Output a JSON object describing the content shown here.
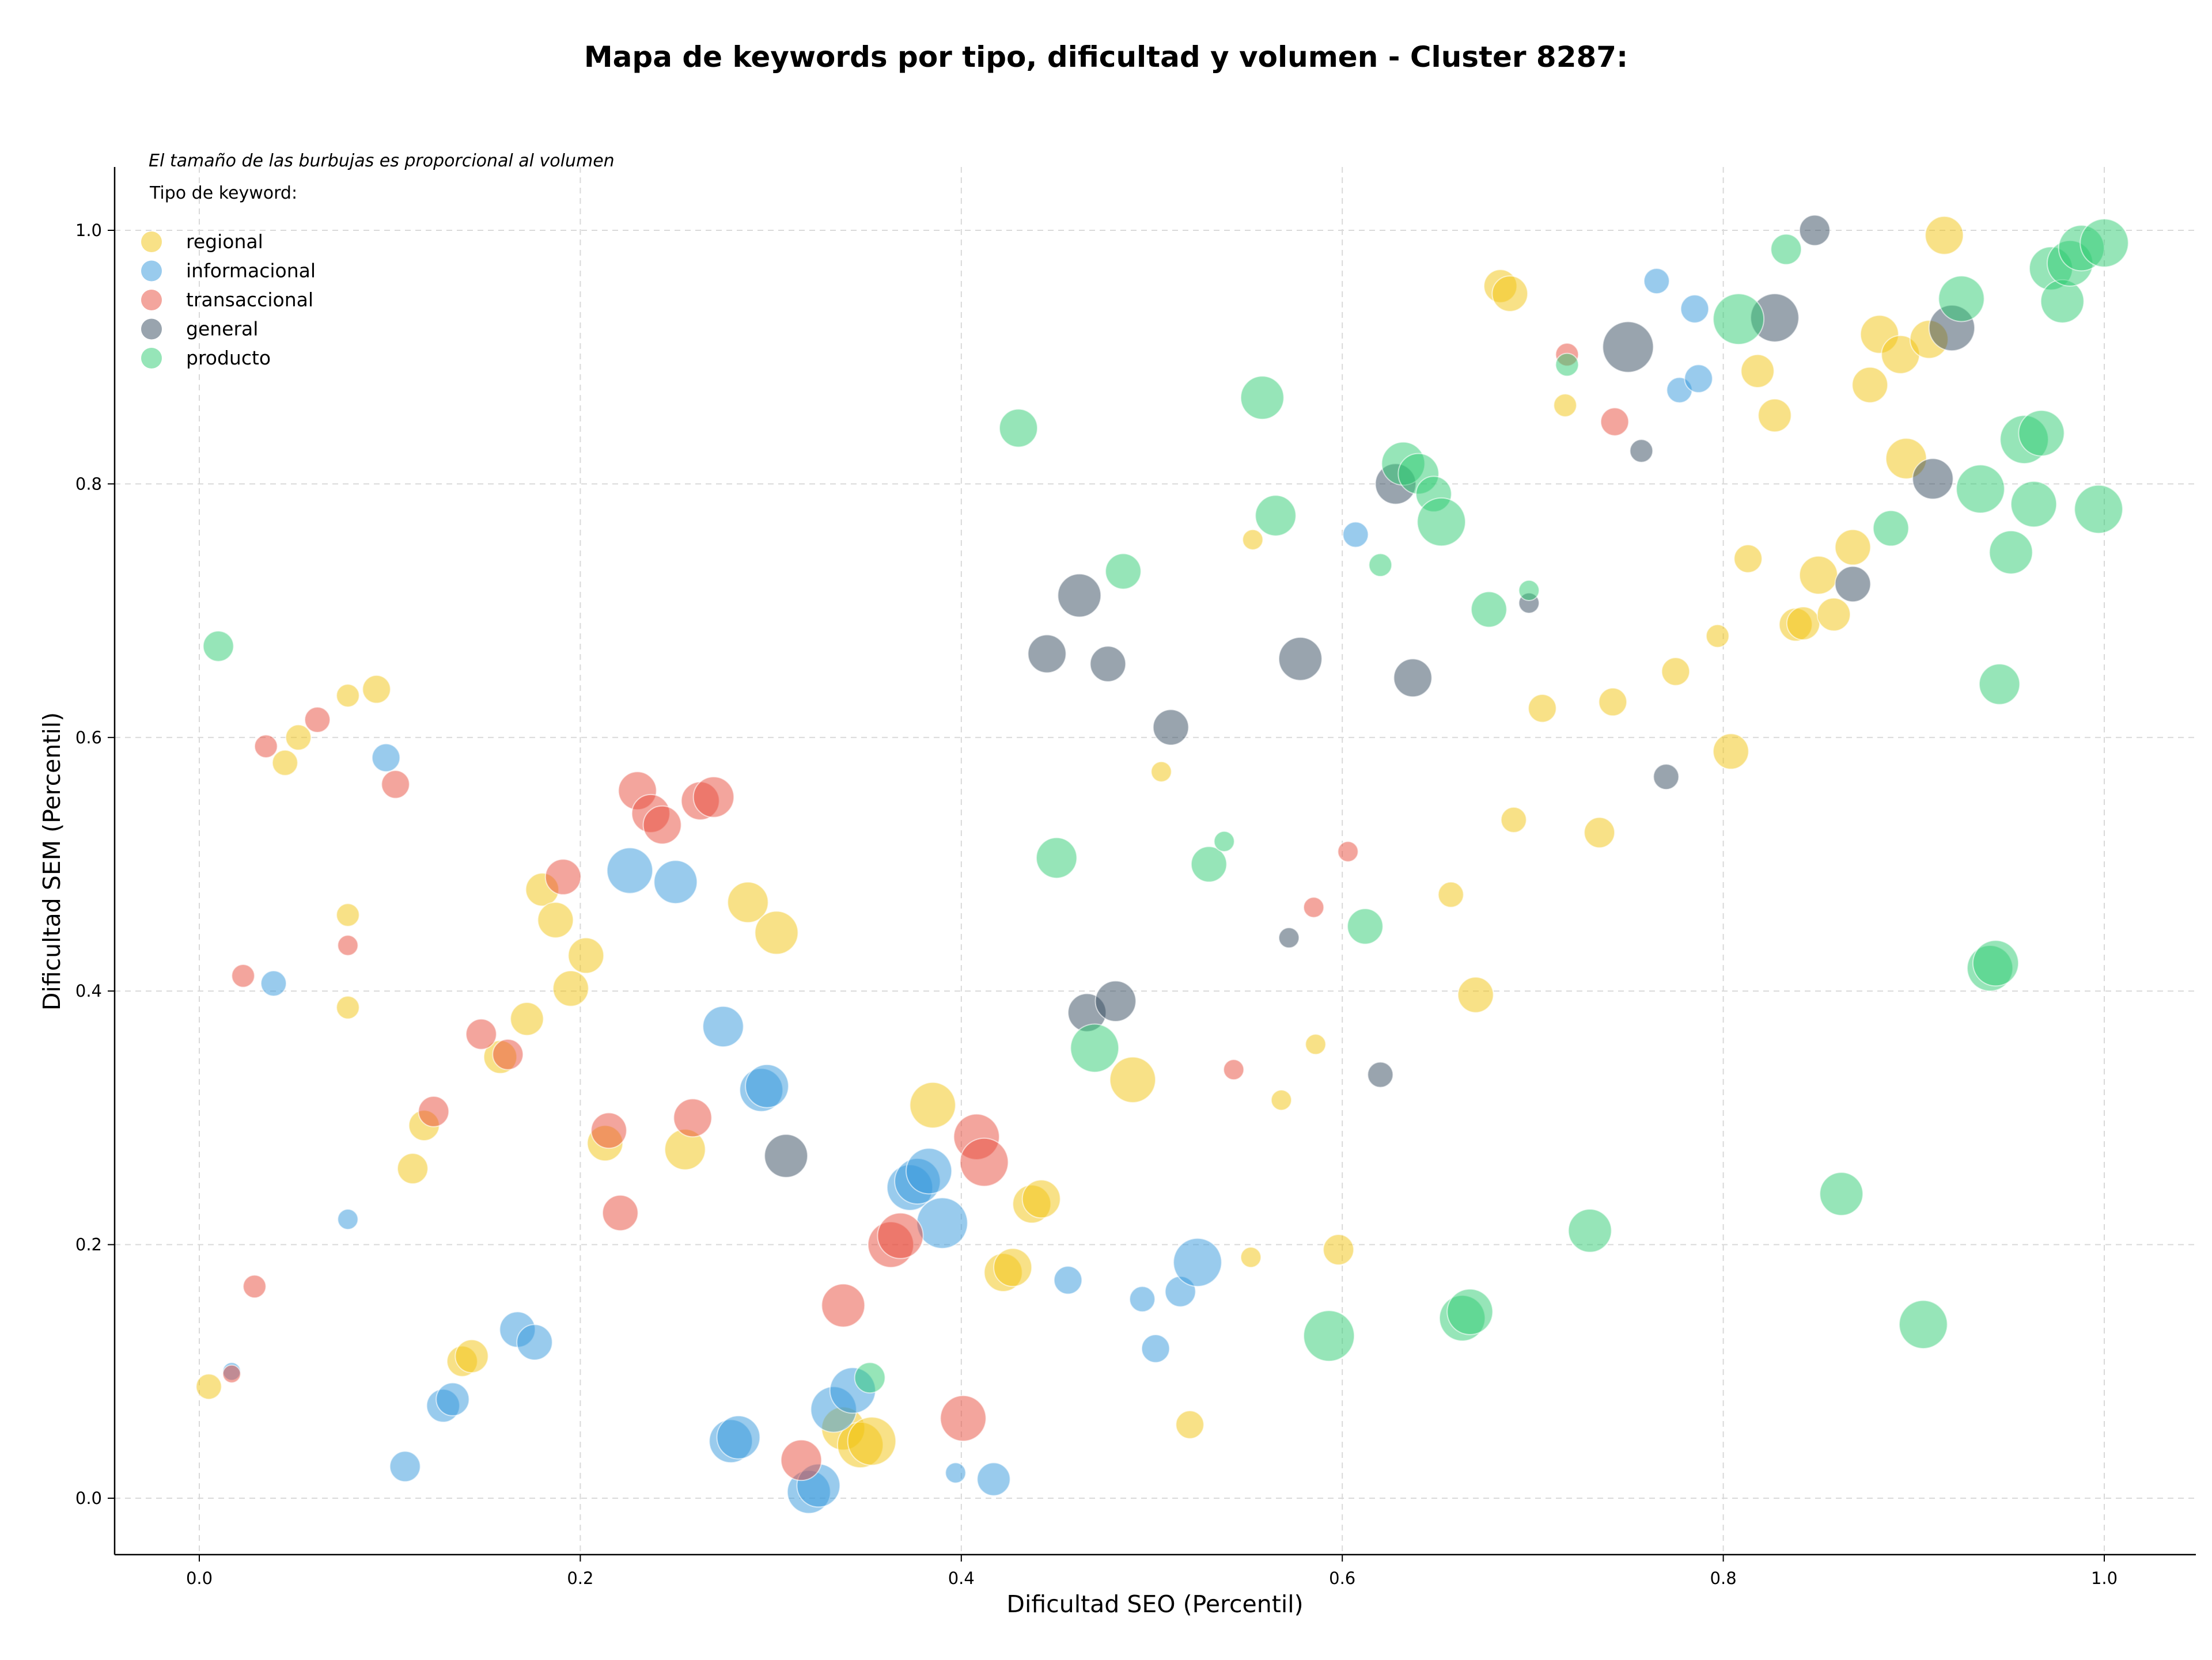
{
  "colors": {
    "regional": "#f1c40f",
    "informacional": "#3498db",
    "transaccional": "#e74c3c",
    "general": "#34495e",
    "producto": "#2ecc71"
  },
  "chart_data": {
    "type": "scatter",
    "title": "Mapa de keywords por tipo, dificultad y volumen - Cluster 8287:",
    "xlabel": "Dificultad SEO (Percentil)",
    "ylabel": "Dificultad SEM (Percentil)",
    "xlim": [
      -0.045,
      1.05
    ],
    "ylim": [
      -0.045,
      1.05
    ],
    "xticks": [
      "0.0",
      "0.2",
      "0.4",
      "0.6",
      "0.8",
      "1.0"
    ],
    "yticks": [
      "0.0",
      "0.2",
      "0.4",
      "0.6",
      "0.8",
      "1.0"
    ],
    "grid": true,
    "note": "El tamaño de las burbujas es proporcional al volumen",
    "legend_title": "Tipo de keyword:",
    "legend_placement": "top-left",
    "legend": [
      "regional",
      "informacional",
      "transaccional",
      "general",
      "producto"
    ],
    "series": [
      {
        "name": "regional",
        "points": [
          [
            0.005,
            0.088,
            1.0
          ],
          [
            0.045,
            0.58,
            1.0
          ],
          [
            0.052,
            0.6,
            1.0
          ],
          [
            0.078,
            0.633,
            0.9
          ],
          [
            0.093,
            0.638,
            1.1
          ],
          [
            0.078,
            0.46,
            0.9
          ],
          [
            0.078,
            0.387,
            0.9
          ],
          [
            0.112,
            0.26,
            1.2
          ],
          [
            0.118,
            0.294,
            1.2
          ],
          [
            0.138,
            0.108,
            1.2
          ],
          [
            0.143,
            0.112,
            1.3
          ],
          [
            0.158,
            0.348,
            1.3
          ],
          [
            0.172,
            0.378,
            1.3
          ],
          [
            0.18,
            0.48,
            1.3
          ],
          [
            0.187,
            0.456,
            1.4
          ],
          [
            0.195,
            0.402,
            1.4
          ],
          [
            0.203,
            0.428,
            1.4
          ],
          [
            0.213,
            0.28,
            1.4
          ],
          [
            0.255,
            0.275,
            1.6
          ],
          [
            0.288,
            0.47,
            1.6
          ],
          [
            0.303,
            0.446,
            1.7
          ],
          [
            0.338,
            0.055,
            1.7
          ],
          [
            0.347,
            0.042,
            1.8
          ],
          [
            0.353,
            0.045,
            1.9
          ],
          [
            0.385,
            0.31,
            1.8
          ],
          [
            0.422,
            0.178,
            1.5
          ],
          [
            0.427,
            0.182,
            1.5
          ],
          [
            0.437,
            0.232,
            1.5
          ],
          [
            0.442,
            0.236,
            1.5
          ],
          [
            0.49,
            0.33,
            1.8
          ],
          [
            0.505,
            0.573,
            0.8
          ],
          [
            0.52,
            0.058,
            1.1
          ],
          [
            0.552,
            0.19,
            0.8
          ],
          [
            0.553,
            0.756,
            0.8
          ],
          [
            0.568,
            0.314,
            0.8
          ],
          [
            0.586,
            0.358,
            0.8
          ],
          [
            0.598,
            0.196,
            1.2
          ],
          [
            0.657,
            0.476,
            1.0
          ],
          [
            0.67,
            0.397,
            1.4
          ],
          [
            0.683,
            0.956,
            1.3
          ],
          [
            0.688,
            0.95,
            1.4
          ],
          [
            0.69,
            0.535,
            1.0
          ],
          [
            0.705,
            0.623,
            1.1
          ],
          [
            0.717,
            0.862,
            0.9
          ],
          [
            0.735,
            0.525,
            1.2
          ],
          [
            0.742,
            0.628,
            1.1
          ],
          [
            0.775,
            0.652,
            1.1
          ],
          [
            0.797,
            0.68,
            0.9
          ],
          [
            0.804,
            0.589,
            1.4
          ],
          [
            0.813,
            0.741,
            1.1
          ],
          [
            0.818,
            0.889,
            1.3
          ],
          [
            0.827,
            0.854,
            1.3
          ],
          [
            0.838,
            0.689,
            1.3
          ],
          [
            0.842,
            0.69,
            1.3
          ],
          [
            0.85,
            0.728,
            1.5
          ],
          [
            0.858,
            0.697,
            1.3
          ],
          [
            0.868,
            0.75,
            1.4
          ],
          [
            0.877,
            0.878,
            1.4
          ],
          [
            0.882,
            0.918,
            1.5
          ],
          [
            0.893,
            0.902,
            1.5
          ],
          [
            0.896,
            0.82,
            1.6
          ],
          [
            0.908,
            0.914,
            1.5
          ],
          [
            0.916,
            0.996,
            1.5
          ]
        ]
      },
      {
        "name": "informacional",
        "points": [
          [
            0.017,
            0.1,
            0.7
          ],
          [
            0.039,
            0.406,
            1.0
          ],
          [
            0.078,
            0.22,
            0.8
          ],
          [
            0.098,
            0.584,
            1.1
          ],
          [
            0.108,
            0.025,
            1.2
          ],
          [
            0.128,
            0.073,
            1.3
          ],
          [
            0.133,
            0.078,
            1.3
          ],
          [
            0.167,
            0.133,
            1.4
          ],
          [
            0.176,
            0.123,
            1.4
          ],
          [
            0.226,
            0.495,
            1.8
          ],
          [
            0.25,
            0.486,
            1.7
          ],
          [
            0.275,
            0.372,
            1.6
          ],
          [
            0.279,
            0.045,
            1.7
          ],
          [
            0.283,
            0.048,
            1.7
          ],
          [
            0.295,
            0.322,
            1.7
          ],
          [
            0.298,
            0.325,
            1.7
          ],
          [
            0.32,
            0.005,
            1.7
          ],
          [
            0.325,
            0.01,
            1.7
          ],
          [
            0.333,
            0.07,
            1.8
          ],
          [
            0.343,
            0.085,
            1.8
          ],
          [
            0.373,
            0.245,
            1.8
          ],
          [
            0.377,
            0.25,
            1.8
          ],
          [
            0.383,
            0.258,
            1.8
          ],
          [
            0.39,
            0.217,
            2.0
          ],
          [
            0.397,
            0.02,
            0.8
          ],
          [
            0.417,
            0.015,
            1.3
          ],
          [
            0.456,
            0.172,
            1.1
          ],
          [
            0.495,
            0.157,
            1.0
          ],
          [
            0.502,
            0.118,
            1.1
          ],
          [
            0.515,
            0.163,
            1.2
          ],
          [
            0.524,
            0.186,
            1.9
          ],
          [
            0.607,
            0.76,
            1.0
          ],
          [
            0.765,
            0.96,
            1.0
          ],
          [
            0.777,
            0.874,
            1.0
          ],
          [
            0.785,
            0.938,
            1.1
          ],
          [
            0.787,
            0.883,
            1.1
          ]
        ]
      },
      {
        "name": "transaccional",
        "points": [
          [
            0.017,
            0.098,
            0.7
          ],
          [
            0.023,
            0.412,
            0.9
          ],
          [
            0.029,
            0.167,
            0.9
          ],
          [
            0.035,
            0.593,
            0.9
          ],
          [
            0.078,
            0.436,
            0.8
          ],
          [
            0.062,
            0.614,
            1.0
          ],
          [
            0.103,
            0.563,
            1.1
          ],
          [
            0.123,
            0.305,
            1.2
          ],
          [
            0.148,
            0.366,
            1.2
          ],
          [
            0.162,
            0.35,
            1.2
          ],
          [
            0.191,
            0.49,
            1.4
          ],
          [
            0.215,
            0.29,
            1.4
          ],
          [
            0.221,
            0.225,
            1.4
          ],
          [
            0.23,
            0.558,
            1.5
          ],
          [
            0.237,
            0.54,
            1.5
          ],
          [
            0.243,
            0.531,
            1.5
          ],
          [
            0.259,
            0.3,
            1.5
          ],
          [
            0.263,
            0.55,
            1.5
          ],
          [
            0.27,
            0.553,
            1.6
          ],
          [
            0.316,
            0.03,
            1.6
          ],
          [
            0.338,
            0.152,
            1.7
          ],
          [
            0.363,
            0.2,
            1.8
          ],
          [
            0.368,
            0.207,
            1.8
          ],
          [
            0.401,
            0.063,
            1.8
          ],
          [
            0.408,
            0.285,
            1.8
          ],
          [
            0.412,
            0.265,
            1.9
          ],
          [
            0.543,
            0.338,
            0.8
          ],
          [
            0.603,
            0.51,
            0.8
          ],
          [
            0.585,
            0.466,
            0.8
          ],
          [
            0.718,
            0.902,
            0.9
          ],
          [
            0.743,
            0.849,
            1.1
          ]
        ]
      },
      {
        "name": "general",
        "points": [
          [
            0.308,
            0.27,
            1.7
          ],
          [
            0.445,
            0.666,
            1.5
          ],
          [
            0.462,
            0.712,
            1.7
          ],
          [
            0.466,
            0.383,
            1.5
          ],
          [
            0.477,
            0.658,
            1.4
          ],
          [
            0.481,
            0.392,
            1.6
          ],
          [
            0.51,
            0.608,
            1.4
          ],
          [
            0.578,
            0.662,
            1.7
          ],
          [
            0.572,
            0.442,
            0.8
          ],
          [
            0.62,
            0.334,
            1.0
          ],
          [
            0.628,
            0.8,
            1.6
          ],
          [
            0.637,
            0.647,
            1.5
          ],
          [
            0.698,
            0.706,
            0.8
          ],
          [
            0.75,
            0.908,
            2.0
          ],
          [
            0.757,
            0.826,
            0.9
          ],
          [
            0.77,
            0.569,
            1.0
          ],
          [
            0.827,
            0.931,
            1.9
          ],
          [
            0.848,
            1.0,
            1.2
          ],
          [
            0.868,
            0.721,
            1.4
          ],
          [
            0.91,
            0.804,
            1.6
          ],
          [
            0.92,
            0.923,
            1.8
          ]
        ]
      },
      {
        "name": "producto",
        "points": [
          [
            0.01,
            0.672,
            1.2
          ],
          [
            0.352,
            0.095,
            1.2
          ],
          [
            0.43,
            0.844,
            1.5
          ],
          [
            0.45,
            0.505,
            1.6
          ],
          [
            0.47,
            0.355,
            1.9
          ],
          [
            0.485,
            0.731,
            1.4
          ],
          [
            0.53,
            0.5,
            1.4
          ],
          [
            0.538,
            0.518,
            0.8
          ],
          [
            0.558,
            0.868,
            1.7
          ],
          [
            0.565,
            0.775,
            1.6
          ],
          [
            0.593,
            0.128,
            2.0
          ],
          [
            0.612,
            0.451,
            1.4
          ],
          [
            0.62,
            0.736,
            0.9
          ],
          [
            0.632,
            0.816,
            1.7
          ],
          [
            0.64,
            0.808,
            1.6
          ],
          [
            0.648,
            0.792,
            1.4
          ],
          [
            0.652,
            0.77,
            1.9
          ],
          [
            0.663,
            0.142,
            1.8
          ],
          [
            0.667,
            0.147,
            1.8
          ],
          [
            0.677,
            0.701,
            1.4
          ],
          [
            0.698,
            0.716,
            0.8
          ],
          [
            0.718,
            0.894,
            0.9
          ],
          [
            0.73,
            0.211,
            1.7
          ],
          [
            0.808,
            0.93,
            2.0
          ],
          [
            0.833,
            0.985,
            1.2
          ],
          [
            0.862,
            0.24,
            1.7
          ],
          [
            0.888,
            0.765,
            1.4
          ],
          [
            0.905,
            0.137,
            1.9
          ],
          [
            0.925,
            0.946,
            1.8
          ],
          [
            0.935,
            0.796,
            1.9
          ],
          [
            0.94,
            0.418,
            1.8
          ],
          [
            0.943,
            0.422,
            1.8
          ],
          [
            0.945,
            0.642,
            1.6
          ],
          [
            0.951,
            0.746,
            1.7
          ],
          [
            0.958,
            0.835,
            1.9
          ],
          [
            0.963,
            0.784,
            1.8
          ],
          [
            0.967,
            0.84,
            1.8
          ],
          [
            0.972,
            0.97,
            1.7
          ],
          [
            0.978,
            0.944,
            1.7
          ],
          [
            0.982,
            0.974,
            1.8
          ],
          [
            0.988,
            0.986,
            1.8
          ],
          [
            0.997,
            0.78,
            1.9
          ],
          [
            1.0,
            0.99,
            1.9
          ]
        ]
      }
    ]
  }
}
